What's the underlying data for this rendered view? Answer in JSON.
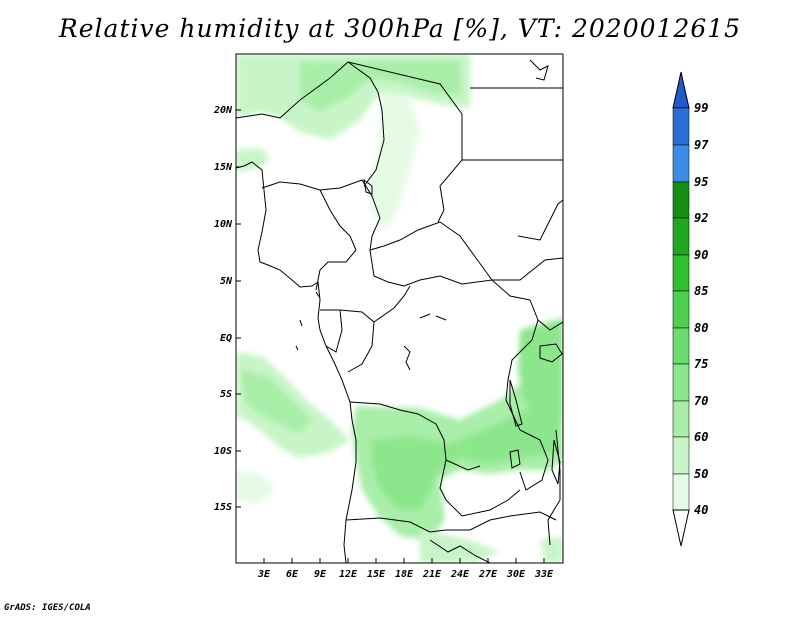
{
  "title": "Relative humidity at 300hPa [%], VT: 2020012615",
  "credit": "GrADS: IGES/COLA",
  "map": {
    "lat_labels": [
      "20N",
      "15N",
      "10N",
      "5N",
      "EQ",
      "5S",
      "10S",
      "15S"
    ],
    "lon_labels": [
      "3E",
      "6E",
      "9E",
      "12E",
      "15E",
      "18E",
      "21E",
      "24E",
      "27E",
      "30E",
      "33E"
    ],
    "lon_range": [
      0,
      35
    ],
    "lat_range": [
      -19,
      25
    ]
  },
  "colorbar": {
    "labels": [
      "40",
      "50",
      "60",
      "70",
      "75",
      "80",
      "85",
      "90",
      "92",
      "95",
      "97",
      "99"
    ],
    "colors": [
      "#ffffff",
      "#e6fbe6",
      "#c8f5c8",
      "#a8eea8",
      "#8ce68c",
      "#6cdc6c",
      "#4ed04e",
      "#32c032",
      "#1fa81f",
      "#148f14",
      "#3c8ce6",
      "#2a6fd8",
      "#2359c8"
    ]
  }
}
